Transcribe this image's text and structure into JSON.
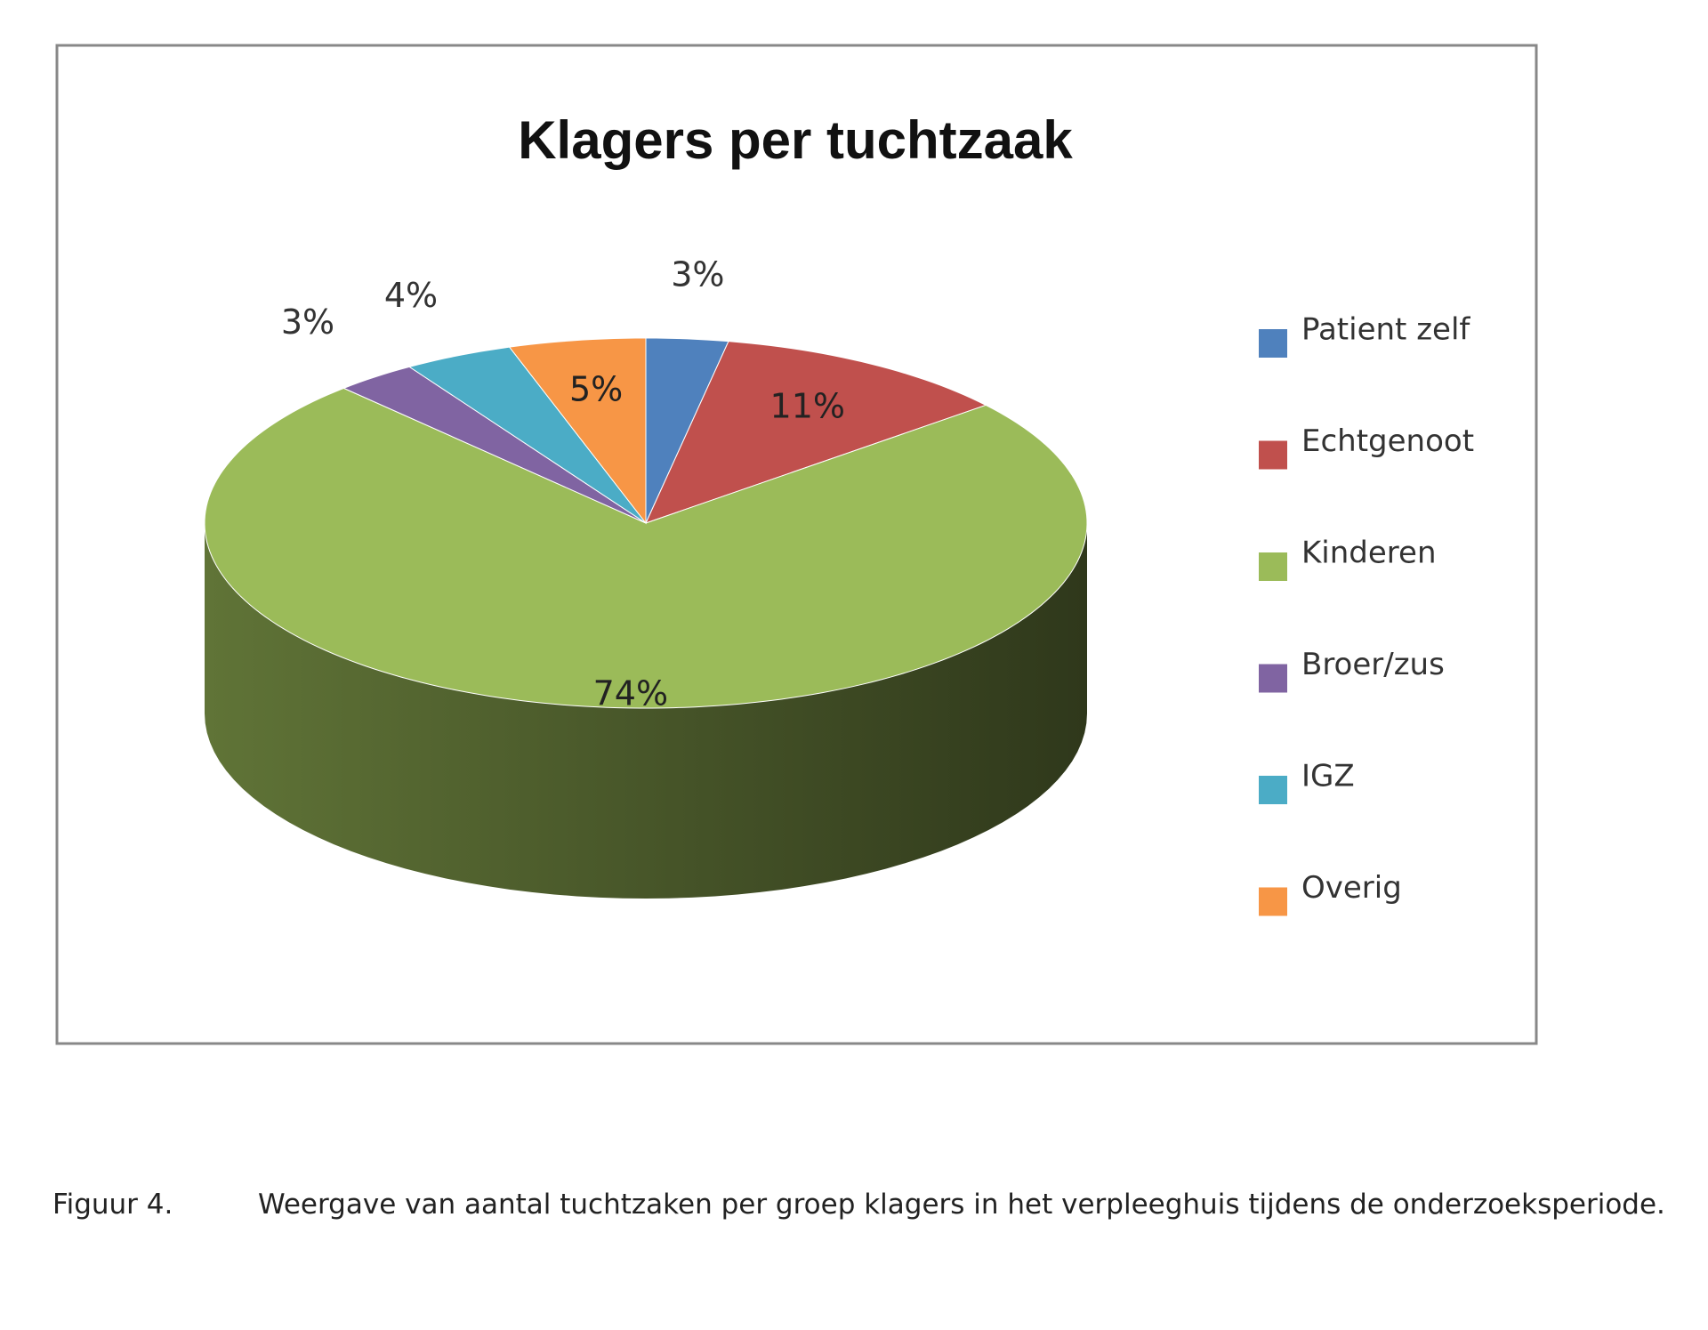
{
  "chart_data": {
    "type": "pie3d",
    "title": "Klagers per tuchtzaak",
    "categories": [
      "Patient zelf",
      "Echtgenoot",
      "Kinderen",
      "Broer/zus",
      "IGZ",
      "Overig"
    ],
    "values": [
      3,
      11,
      74,
      3,
      4,
      5
    ],
    "value_labels": [
      "3%",
      "11%",
      "74%",
      "3%",
      "4%",
      "5%"
    ],
    "colors": [
      "#4f81bd",
      "#c0504d",
      "#9bbb59",
      "#8064a2",
      "#4bacc6",
      "#f79646"
    ],
    "legend": "right"
  },
  "caption": {
    "label": "Figuur 4.",
    "text": "Weergave van aantal tuchtzaken per groep klagers in het verpleeghuis tijdens de onderzoeksperiode."
  }
}
